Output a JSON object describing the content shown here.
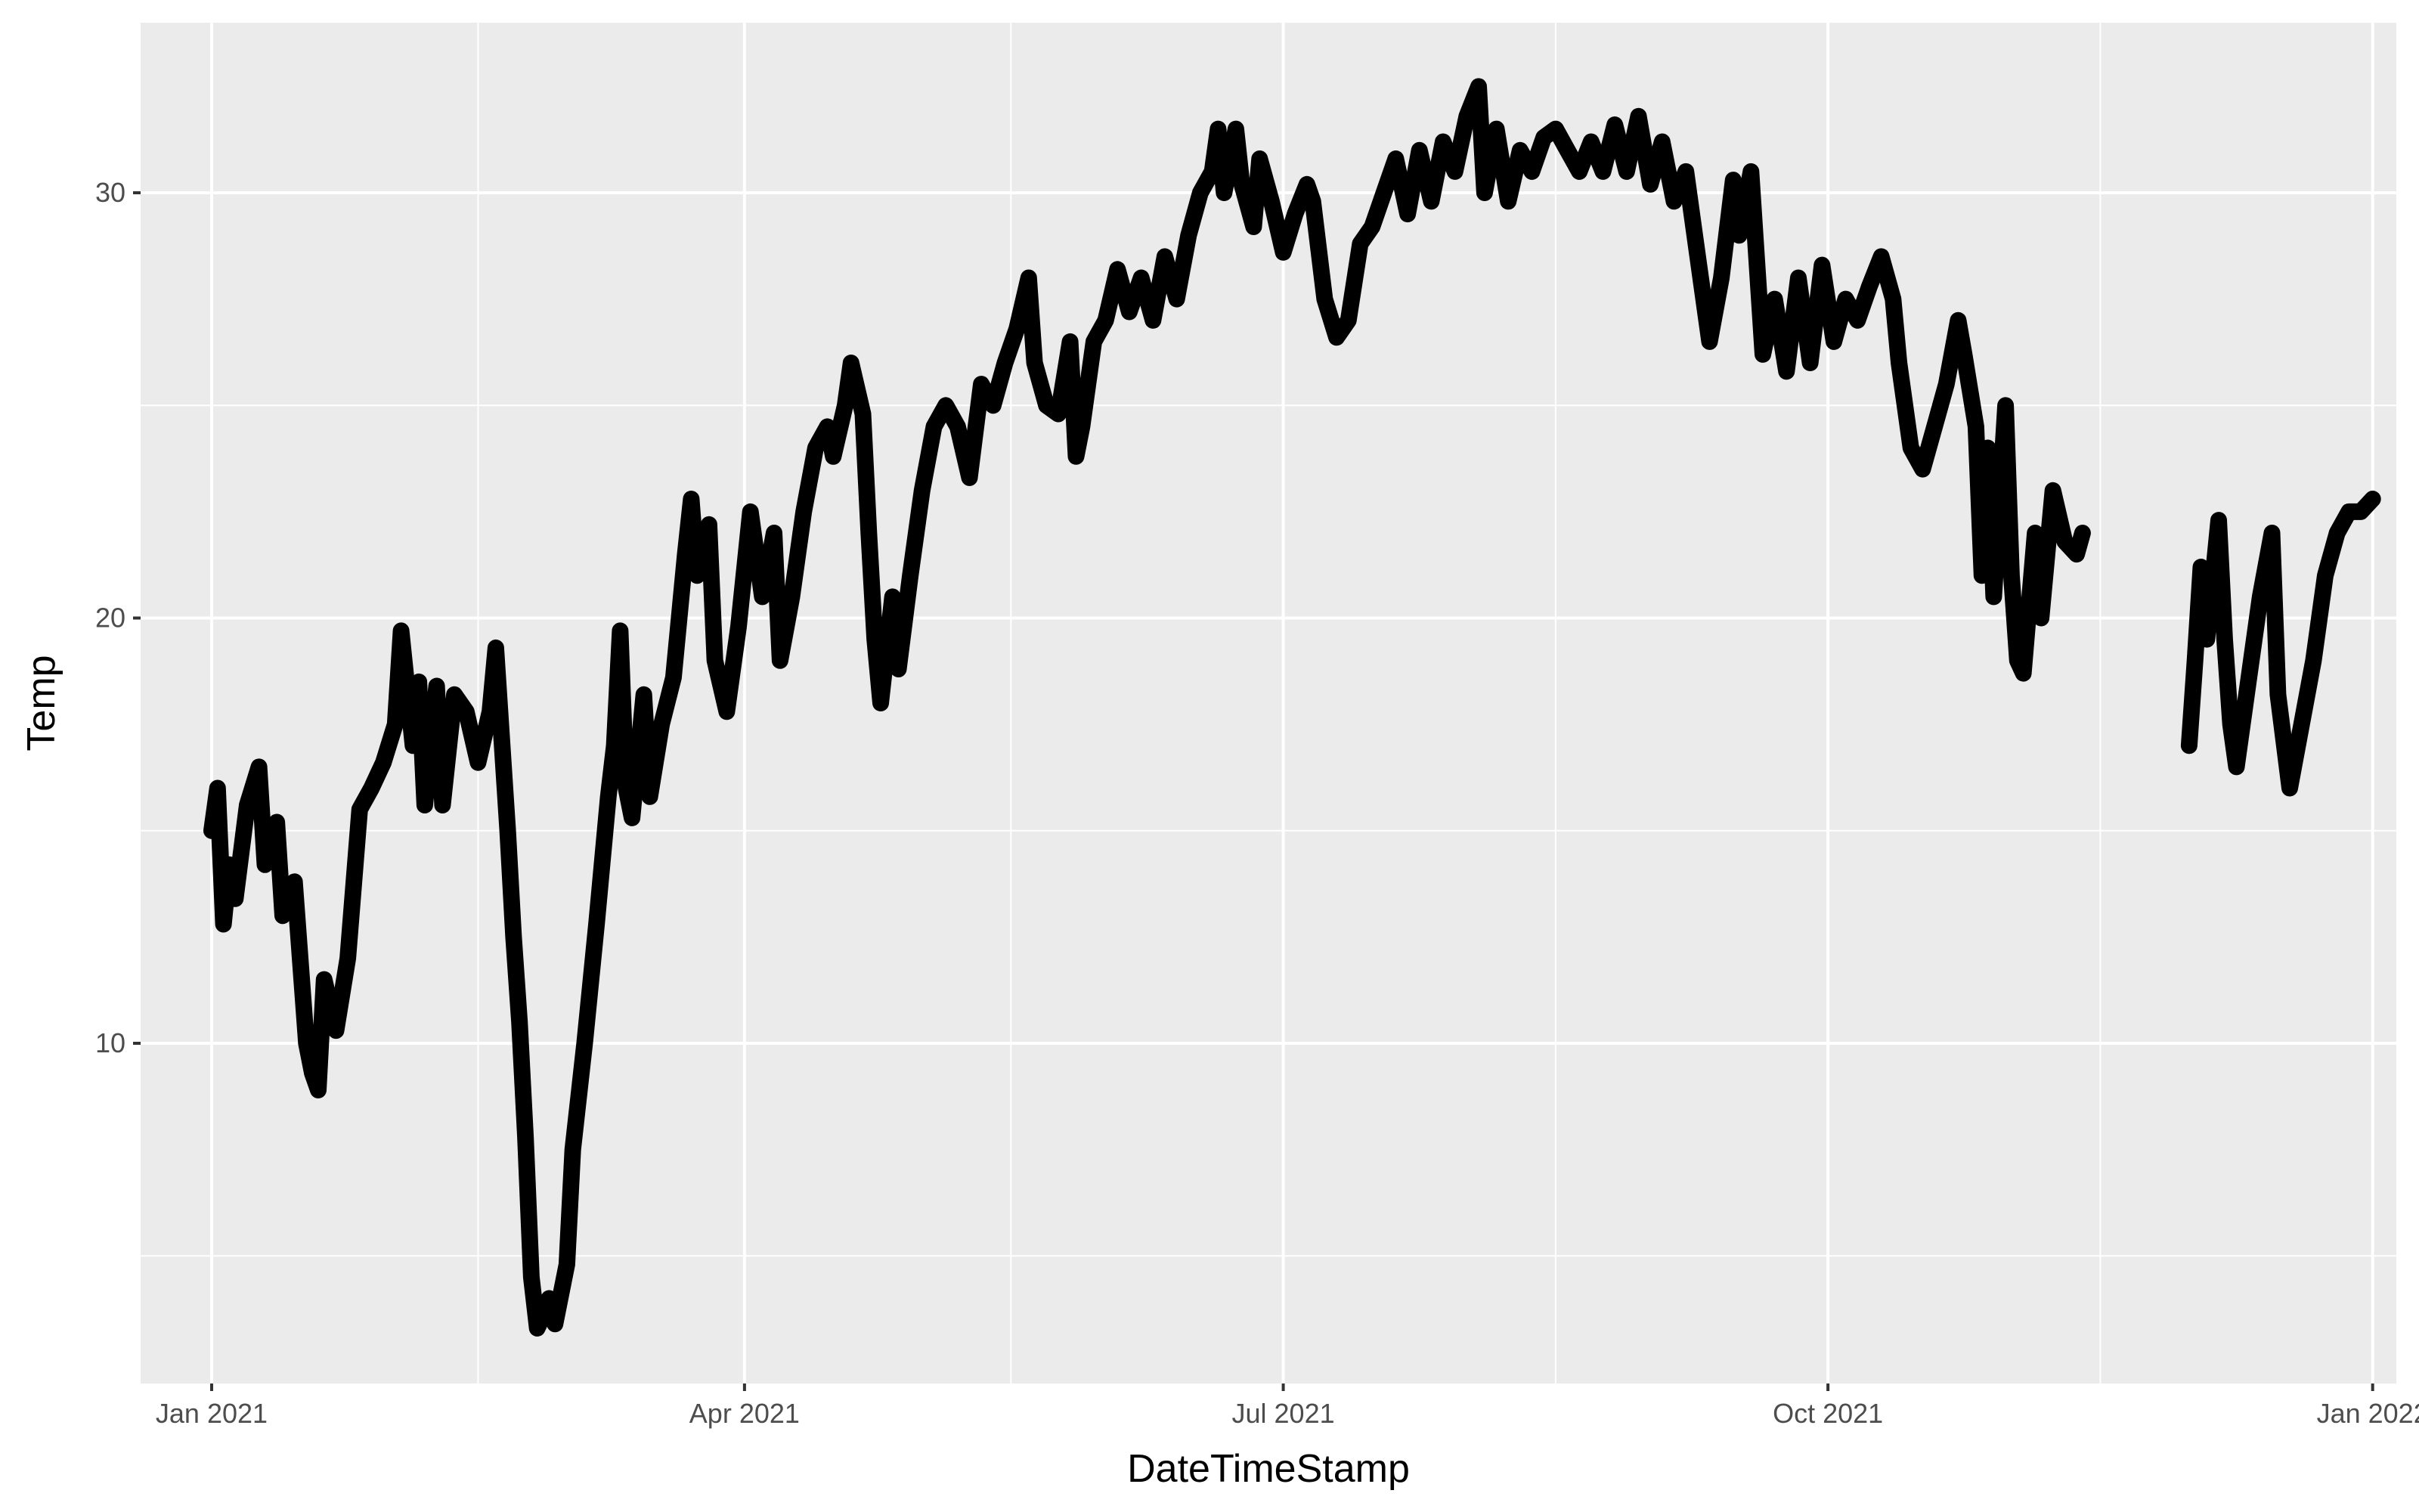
{
  "chart_data": {
    "type": "line",
    "title": "",
    "xlabel": "DateTimeStamp",
    "ylabel": "Temp",
    "x_range": [
      "2020-12-20",
      "2022-01-05"
    ],
    "ylim": [
      2,
      34
    ],
    "x_ticks": [
      {
        "label": "Jan 2021",
        "date": "2021-01-01"
      },
      {
        "label": "Apr 2021",
        "date": "2021-04-01"
      },
      {
        "label": "Jul 2021",
        "date": "2021-07-01"
      },
      {
        "label": "Oct 2021",
        "date": "2021-10-01"
      },
      {
        "label": "Jan 2022",
        "date": "2022-01-01"
      }
    ],
    "x_minor_ticks": [
      "2021-02-15",
      "2021-05-16",
      "2021-08-16",
      "2021-11-16"
    ],
    "y_ticks": [
      10,
      20,
      30
    ],
    "y_minor_ticks": [
      5,
      15,
      25
    ],
    "grid": true,
    "background": "#ebebeb",
    "grid_color": "#ffffff",
    "line_color": "#000000",
    "series": [
      {
        "segments": [
          [
            [
              "2021-01-01",
              15.0
            ],
            [
              "2021-01-02",
              16.0
            ],
            [
              "2021-01-03",
              12.8
            ],
            [
              "2021-01-04",
              14.2
            ],
            [
              "2021-01-05",
              13.4
            ],
            [
              "2021-01-07",
              15.6
            ],
            [
              "2021-01-09",
              16.5
            ],
            [
              "2021-01-10",
              14.2
            ],
            [
              "2021-01-12",
              15.2
            ],
            [
              "2021-01-13",
              13.0
            ],
            [
              "2021-01-15",
              13.8
            ],
            [
              "2021-01-17",
              10.0
            ],
            [
              "2021-01-18",
              9.3
            ],
            [
              "2021-01-19",
              8.9
            ],
            [
              "2021-01-20",
              11.5
            ],
            [
              "2021-01-22",
              10.3
            ],
            [
              "2021-01-24",
              12.0
            ],
            [
              "2021-01-26",
              15.5
            ],
            [
              "2021-01-28",
              16.0
            ],
            [
              "2021-01-30",
              16.6
            ],
            [
              "2021-02-01",
              17.5
            ],
            [
              "2021-02-02",
              19.7
            ],
            [
              "2021-02-04",
              17.0
            ],
            [
              "2021-02-05",
              18.5
            ],
            [
              "2021-02-06",
              15.6
            ],
            [
              "2021-02-08",
              18.4
            ],
            [
              "2021-02-09",
              15.6
            ],
            [
              "2021-02-11",
              18.2
            ],
            [
              "2021-02-13",
              17.8
            ],
            [
              "2021-02-15",
              16.6
            ],
            [
              "2021-02-17",
              17.8
            ],
            [
              "2021-02-18",
              19.3
            ],
            [
              "2021-02-20",
              15.0
            ],
            [
              "2021-02-21",
              12.5
            ],
            [
              "2021-02-22",
              10.5
            ],
            [
              "2021-02-23",
              7.8
            ],
            [
              "2021-02-24",
              4.5
            ],
            [
              "2021-02-25",
              3.3
            ],
            [
              "2021-02-26",
              3.6
            ],
            [
              "2021-02-27",
              4.0
            ],
            [
              "2021-02-28",
              3.4
            ],
            [
              "2021-03-02",
              4.8
            ],
            [
              "2021-03-03",
              7.5
            ],
            [
              "2021-03-05",
              10.0
            ],
            [
              "2021-03-07",
              12.8
            ],
            [
              "2021-03-09",
              15.8
            ],
            [
              "2021-03-10",
              17.0
            ],
            [
              "2021-03-11",
              19.7
            ],
            [
              "2021-03-12",
              16.0
            ],
            [
              "2021-03-13",
              15.3
            ],
            [
              "2021-03-15",
              18.2
            ],
            [
              "2021-03-16",
              15.8
            ],
            [
              "2021-03-18",
              17.5
            ],
            [
              "2021-03-20",
              18.6
            ],
            [
              "2021-03-22",
              21.5
            ],
            [
              "2021-03-23",
              22.8
            ],
            [
              "2021-03-24",
              21.0
            ],
            [
              "2021-03-26",
              22.2
            ],
            [
              "2021-03-27",
              19.0
            ],
            [
              "2021-03-29",
              17.8
            ],
            [
              "2021-03-31",
              19.8
            ],
            [
              "2021-04-02",
              22.5
            ],
            [
              "2021-04-04",
              20.5
            ],
            [
              "2021-04-06",
              22.0
            ],
            [
              "2021-04-07",
              19.0
            ],
            [
              "2021-04-09",
              20.5
            ],
            [
              "2021-04-11",
              22.5
            ],
            [
              "2021-04-13",
              24.0
            ],
            [
              "2021-04-15",
              24.5
            ],
            [
              "2021-04-16",
              23.8
            ],
            [
              "2021-04-18",
              25.0
            ],
            [
              "2021-04-19",
              26.0
            ],
            [
              "2021-04-21",
              24.8
            ],
            [
              "2021-04-22",
              22.0
            ],
            [
              "2021-04-23",
              19.5
            ],
            [
              "2021-04-24",
              18.0
            ],
            [
              "2021-04-26",
              20.5
            ],
            [
              "2021-04-27",
              18.8
            ],
            [
              "2021-04-29",
              21.0
            ],
            [
              "2021-05-01",
              23.0
            ],
            [
              "2021-05-03",
              24.5
            ],
            [
              "2021-05-05",
              25.0
            ],
            [
              "2021-05-07",
              24.5
            ],
            [
              "2021-05-09",
              23.3
            ],
            [
              "2021-05-11",
              25.5
            ],
            [
              "2021-05-13",
              25.0
            ],
            [
              "2021-05-15",
              26.0
            ],
            [
              "2021-05-17",
              26.8
            ],
            [
              "2021-05-19",
              28.0
            ],
            [
              "2021-05-20",
              26.0
            ],
            [
              "2021-05-22",
              25.0
            ],
            [
              "2021-05-24",
              24.8
            ],
            [
              "2021-05-26",
              26.5
            ],
            [
              "2021-05-27",
              23.8
            ],
            [
              "2021-05-28",
              24.5
            ],
            [
              "2021-05-30",
              26.5
            ],
            [
              "2021-06-01",
              27.0
            ],
            [
              "2021-06-03",
              28.2
            ],
            [
              "2021-06-05",
              27.2
            ],
            [
              "2021-06-07",
              28.0
            ],
            [
              "2021-06-09",
              27.0
            ],
            [
              "2021-06-11",
              28.5
            ],
            [
              "2021-06-13",
              27.5
            ],
            [
              "2021-06-15",
              29.0
            ],
            [
              "2021-06-17",
              30.0
            ],
            [
              "2021-06-19",
              30.5
            ],
            [
              "2021-06-20",
              31.5
            ],
            [
              "2021-06-21",
              30.0
            ],
            [
              "2021-06-23",
              31.5
            ],
            [
              "2021-06-24",
              30.2
            ],
            [
              "2021-06-26",
              29.2
            ],
            [
              "2021-06-27",
              30.8
            ],
            [
              "2021-06-29",
              29.8
            ],
            [
              "2021-07-01",
              28.6
            ],
            [
              "2021-07-03",
              29.5
            ],
            [
              "2021-07-05",
              30.2
            ],
            [
              "2021-07-06",
              29.8
            ],
            [
              "2021-07-08",
              27.5
            ],
            [
              "2021-07-10",
              26.6
            ],
            [
              "2021-07-12",
              27.0
            ],
            [
              "2021-07-14",
              28.8
            ],
            [
              "2021-07-16",
              29.2
            ],
            [
              "2021-07-18",
              30.0
            ],
            [
              "2021-07-20",
              30.8
            ],
            [
              "2021-07-22",
              29.5
            ],
            [
              "2021-07-24",
              31.0
            ],
            [
              "2021-07-26",
              29.8
            ],
            [
              "2021-07-28",
              31.2
            ],
            [
              "2021-07-30",
              30.5
            ],
            [
              "2021-08-01",
              31.8
            ],
            [
              "2021-08-03",
              32.5
            ],
            [
              "2021-08-04",
              30.0
            ],
            [
              "2021-08-06",
              31.5
            ],
            [
              "2021-08-08",
              29.8
            ],
            [
              "2021-08-10",
              31.0
            ],
            [
              "2021-08-12",
              30.5
            ],
            [
              "2021-08-14",
              31.3
            ],
            [
              "2021-08-16",
              31.5
            ],
            [
              "2021-08-18",
              31.0
            ],
            [
              "2021-08-20",
              30.5
            ],
            [
              "2021-08-22",
              31.2
            ],
            [
              "2021-08-24",
              30.5
            ],
            [
              "2021-08-26",
              31.6
            ],
            [
              "2021-08-28",
              30.5
            ],
            [
              "2021-08-30",
              31.8
            ],
            [
              "2021-09-01",
              30.2
            ],
            [
              "2021-09-03",
              31.2
            ],
            [
              "2021-09-05",
              29.8
            ],
            [
              "2021-09-07",
              30.5
            ],
            [
              "2021-09-09",
              28.5
            ],
            [
              "2021-09-11",
              26.5
            ],
            [
              "2021-09-13",
              28.0
            ],
            [
              "2021-09-15",
              30.3
            ],
            [
              "2021-09-16",
              29.0
            ],
            [
              "2021-09-18",
              30.5
            ],
            [
              "2021-09-20",
              26.2
            ],
            [
              "2021-09-22",
              27.5
            ],
            [
              "2021-09-24",
              25.8
            ],
            [
              "2021-09-26",
              28.0
            ],
            [
              "2021-09-28",
              26.0
            ],
            [
              "2021-09-30",
              28.3
            ],
            [
              "2021-10-02",
              26.5
            ],
            [
              "2021-10-04",
              27.5
            ],
            [
              "2021-10-06",
              27.0
            ],
            [
              "2021-10-08",
              27.8
            ],
            [
              "2021-10-10",
              28.5
            ],
            [
              "2021-10-12",
              27.5
            ],
            [
              "2021-10-13",
              26.0
            ],
            [
              "2021-10-15",
              24.0
            ],
            [
              "2021-10-17",
              23.5
            ],
            [
              "2021-10-19",
              24.5
            ],
            [
              "2021-10-21",
              25.5
            ],
            [
              "2021-10-23",
              27.0
            ],
            [
              "2021-10-24",
              26.2
            ],
            [
              "2021-10-26",
              24.5
            ],
            [
              "2021-10-27",
              21.0
            ],
            [
              "2021-10-28",
              24.0
            ],
            [
              "2021-10-29",
              20.5
            ],
            [
              "2021-10-31",
              25.0
            ],
            [
              "2021-11-01",
              21.0
            ],
            [
              "2021-11-02",
              19.0
            ],
            [
              "2021-11-03",
              18.7
            ],
            [
              "2021-11-05",
              22.0
            ],
            [
              "2021-11-06",
              20.0
            ],
            [
              "2021-11-08",
              23.0
            ],
            [
              "2021-11-10",
              21.8
            ],
            [
              "2021-11-12",
              21.5
            ],
            [
              "2021-11-13",
              22.0
            ]
          ],
          [
            [
              "2021-12-01",
              17.0
            ],
            [
              "2021-12-02",
              19.0
            ],
            [
              "2021-12-03",
              21.2
            ],
            [
              "2021-12-04",
              19.5
            ],
            [
              "2021-12-06",
              22.3
            ],
            [
              "2021-12-07",
              19.5
            ],
            [
              "2021-12-08",
              17.5
            ],
            [
              "2021-12-09",
              16.5
            ],
            [
              "2021-12-11",
              18.5
            ],
            [
              "2021-12-13",
              20.5
            ],
            [
              "2021-12-15",
              22.0
            ],
            [
              "2021-12-16",
              18.2
            ],
            [
              "2021-12-18",
              16.0
            ],
            [
              "2021-12-20",
              17.5
            ],
            [
              "2021-12-22",
              19.0
            ],
            [
              "2021-12-24",
              21.0
            ],
            [
              "2021-12-26",
              22.0
            ],
            [
              "2021-12-28",
              22.5
            ],
            [
              "2021-12-30",
              22.5
            ],
            [
              "2022-01-01",
              22.8
            ]
          ]
        ]
      }
    ]
  }
}
